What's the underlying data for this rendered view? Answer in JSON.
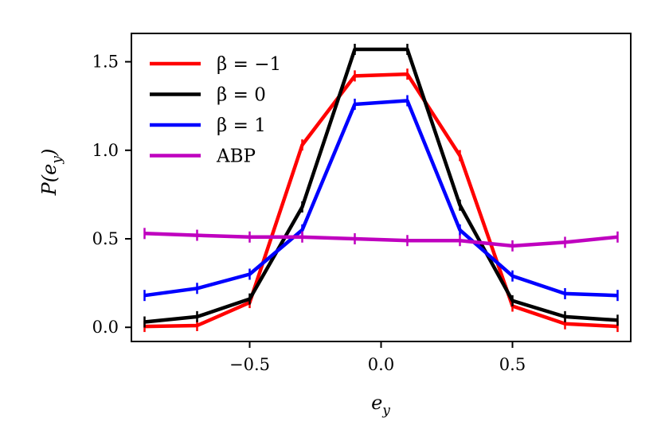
{
  "chart_data": {
    "type": "line",
    "title": "",
    "xlabel": "e_y",
    "ylabel": "P(e_y)",
    "xlim": [
      -0.95,
      0.95
    ],
    "ylim": [
      -0.08,
      1.66
    ],
    "xticks": [
      -0.5,
      0.0,
      0.5
    ],
    "xtick_labels": [
      "−0.5",
      "0.0",
      "0.5"
    ],
    "yticks": [
      0.0,
      0.5,
      1.0,
      1.5
    ],
    "ytick_labels": [
      "0.0",
      "0.5",
      "1.0",
      "1.5"
    ],
    "legend_position": "top-left",
    "series": [
      {
        "name": "β = −1",
        "color": "#ff0000",
        "x": [
          -0.9,
          -0.7,
          -0.5,
          -0.3,
          -0.1,
          0.1,
          0.3,
          0.5,
          0.7,
          0.9
        ],
        "y": [
          0.005,
          0.01,
          0.14,
          1.03,
          1.42,
          1.43,
          0.97,
          0.12,
          0.02,
          0.005
        ]
      },
      {
        "name": "β = 0",
        "color": "#000000",
        "x": [
          -0.9,
          -0.7,
          -0.5,
          -0.3,
          -0.1,
          0.1,
          0.3,
          0.5,
          0.7,
          0.9
        ],
        "y": [
          0.03,
          0.06,
          0.16,
          0.68,
          1.57,
          1.57,
          0.69,
          0.15,
          0.06,
          0.04
        ]
      },
      {
        "name": "β = 1",
        "color": "#0000ff",
        "x": [
          -0.9,
          -0.7,
          -0.5,
          -0.3,
          -0.1,
          0.1,
          0.3,
          0.5,
          0.7,
          0.9
        ],
        "y": [
          0.18,
          0.22,
          0.3,
          0.55,
          1.26,
          1.28,
          0.55,
          0.29,
          0.19,
          0.18
        ]
      },
      {
        "name": "ABP",
        "color": "#bf00bf",
        "x": [
          -0.9,
          -0.7,
          -0.5,
          -0.3,
          -0.1,
          0.1,
          0.3,
          0.5,
          0.7,
          0.9
        ],
        "y": [
          0.53,
          0.52,
          0.51,
          0.51,
          0.5,
          0.49,
          0.49,
          0.46,
          0.48,
          0.51
        ]
      }
    ]
  }
}
